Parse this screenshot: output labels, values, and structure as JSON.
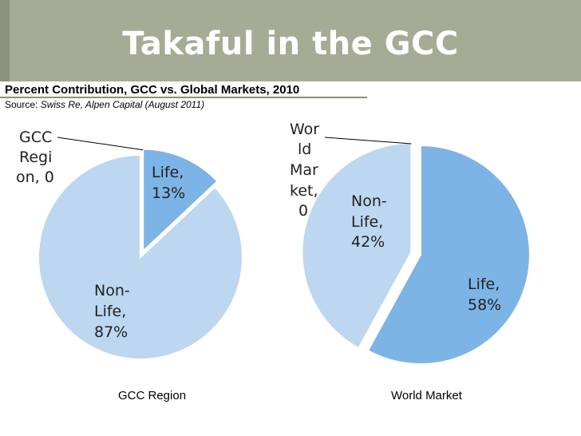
{
  "slide": {
    "title": "Takaful in the GCC",
    "subtitle": "Percent Contribution, GCC vs. Global Markets, 2010",
    "source_prefix": "Source: ",
    "source_text": "Swiss Re, Alpen Capital (August 2011)"
  },
  "colors": {
    "title_bar": "#a6ab96",
    "life": "#7db4e6",
    "non_life": "#bdd7f1"
  },
  "chart_data": [
    {
      "type": "pie",
      "title": "GCC Region",
      "categories": [
        "Life",
        "Non-Life"
      ],
      "values": [
        13,
        87
      ],
      "data_labels": [
        [
          "Life,",
          "13%"
        ],
        [
          "Non-",
          "Life,",
          "87%"
        ]
      ],
      "zero_label": [
        "GCC",
        "Regi",
        "on, 0"
      ],
      "exploded": "Life"
    },
    {
      "type": "pie",
      "title": "World Market",
      "categories": [
        "Life",
        "Non-Life"
      ],
      "values": [
        58,
        42
      ],
      "data_labels": [
        [
          "Life,",
          "58%"
        ],
        [
          "Non-",
          "Life,",
          "42%"
        ]
      ],
      "zero_label": [
        "Wor",
        "ld",
        "Mar",
        "ket,",
        "0"
      ],
      "exploded": "Non-Life"
    }
  ]
}
